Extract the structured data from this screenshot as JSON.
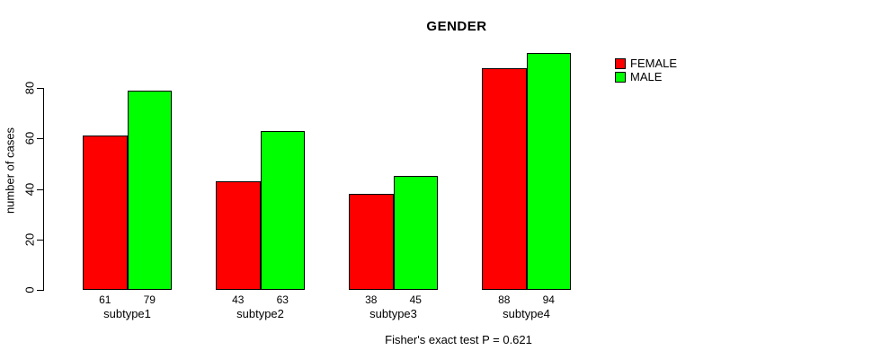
{
  "chart_data": {
    "type": "bar",
    "title": "GENDER",
    "xlabel": "",
    "ylabel": "number of cases",
    "categories": [
      "subtype1",
      "subtype2",
      "subtype3",
      "subtype4"
    ],
    "series": [
      {
        "name": "FEMALE",
        "color": "#ff0000",
        "values": [
          61,
          43,
          38,
          88
        ]
      },
      {
        "name": "MALE",
        "color": "#00ff00",
        "values": [
          79,
          63,
          45,
          94
        ]
      }
    ],
    "value_labels_shown": true,
    "yticks": [
      0,
      20,
      40,
      60,
      80
    ],
    "ylim": [
      0,
      98
    ],
    "grid": false,
    "legend_position": "top-right",
    "annotation": "Fisher's exact test P = 0.621",
    "background_color": "#ffffff",
    "axis_color": "#000000"
  }
}
